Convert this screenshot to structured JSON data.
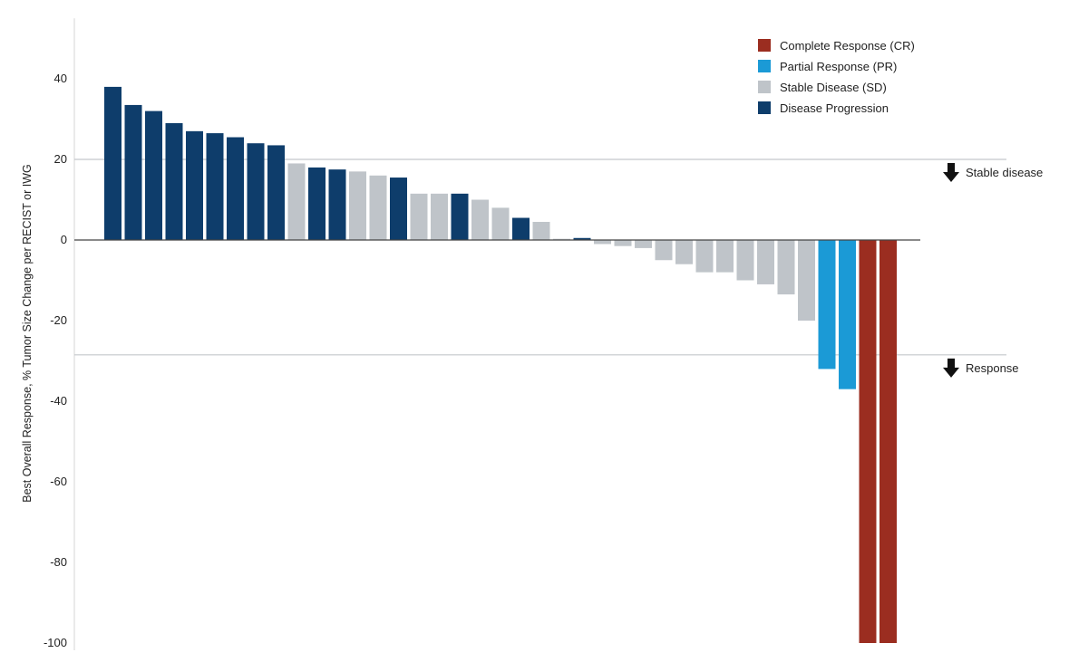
{
  "chart_data": {
    "type": "bar",
    "ylabel": "Best Overall Response, % Tumor Size Change per RECIST or IWG",
    "xlabel": "",
    "ylim": [
      -100,
      55
    ],
    "yticks": [
      40,
      20,
      0,
      -20,
      -40,
      -60,
      -80,
      -100
    ],
    "grid": false,
    "legend_position": "top-right",
    "legend": [
      {
        "key": "CR",
        "label": "Complete Response (CR)",
        "color": "#9b2d20"
      },
      {
        "key": "PR",
        "label": "Partial Response (PR)",
        "color": "#1b9ad6"
      },
      {
        "key": "SD",
        "label": "Stable Disease (SD)",
        "color": "#bfc4c9"
      },
      {
        "key": "PD",
        "label": "Disease Progression",
        "color": "#0e3d6b"
      }
    ],
    "bars": [
      {
        "value": 38,
        "category": "PD"
      },
      {
        "value": 33.5,
        "category": "PD"
      },
      {
        "value": 32,
        "category": "PD"
      },
      {
        "value": 29,
        "category": "PD"
      },
      {
        "value": 27,
        "category": "PD"
      },
      {
        "value": 26.5,
        "category": "PD"
      },
      {
        "value": 25.5,
        "category": "PD"
      },
      {
        "value": 24,
        "category": "PD"
      },
      {
        "value": 23.5,
        "category": "PD"
      },
      {
        "value": 19,
        "category": "SD"
      },
      {
        "value": 18,
        "category": "PD"
      },
      {
        "value": 17.5,
        "category": "PD"
      },
      {
        "value": 17,
        "category": "SD"
      },
      {
        "value": 16,
        "category": "SD"
      },
      {
        "value": 15.5,
        "category": "PD"
      },
      {
        "value": 11.5,
        "category": "SD"
      },
      {
        "value": 11.5,
        "category": "SD"
      },
      {
        "value": 11.5,
        "category": "PD"
      },
      {
        "value": 10,
        "category": "SD"
      },
      {
        "value": 8,
        "category": "SD"
      },
      {
        "value": 5.5,
        "category": "PD"
      },
      {
        "value": 4.5,
        "category": "SD"
      },
      {
        "value": 0.3,
        "category": "SD"
      },
      {
        "value": 0.5,
        "category": "PD"
      },
      {
        "value": -1,
        "category": "SD"
      },
      {
        "value": -1.5,
        "category": "SD"
      },
      {
        "value": -2,
        "category": "SD"
      },
      {
        "value": -5,
        "category": "SD"
      },
      {
        "value": -6,
        "category": "SD"
      },
      {
        "value": -8,
        "category": "SD"
      },
      {
        "value": -8,
        "category": "SD"
      },
      {
        "value": -10,
        "category": "SD"
      },
      {
        "value": -11,
        "category": "SD"
      },
      {
        "value": -13.5,
        "category": "SD"
      },
      {
        "value": -20,
        "category": "SD"
      },
      {
        "value": -32,
        "category": "PR"
      },
      {
        "value": -37,
        "category": "PR"
      },
      {
        "value": -100,
        "category": "CR"
      },
      {
        "value": -100,
        "category": "CR"
      }
    ],
    "reference_lines": [
      {
        "value": 20,
        "label": "Stable disease"
      },
      {
        "value": -28.5,
        "label": "Response"
      }
    ]
  }
}
